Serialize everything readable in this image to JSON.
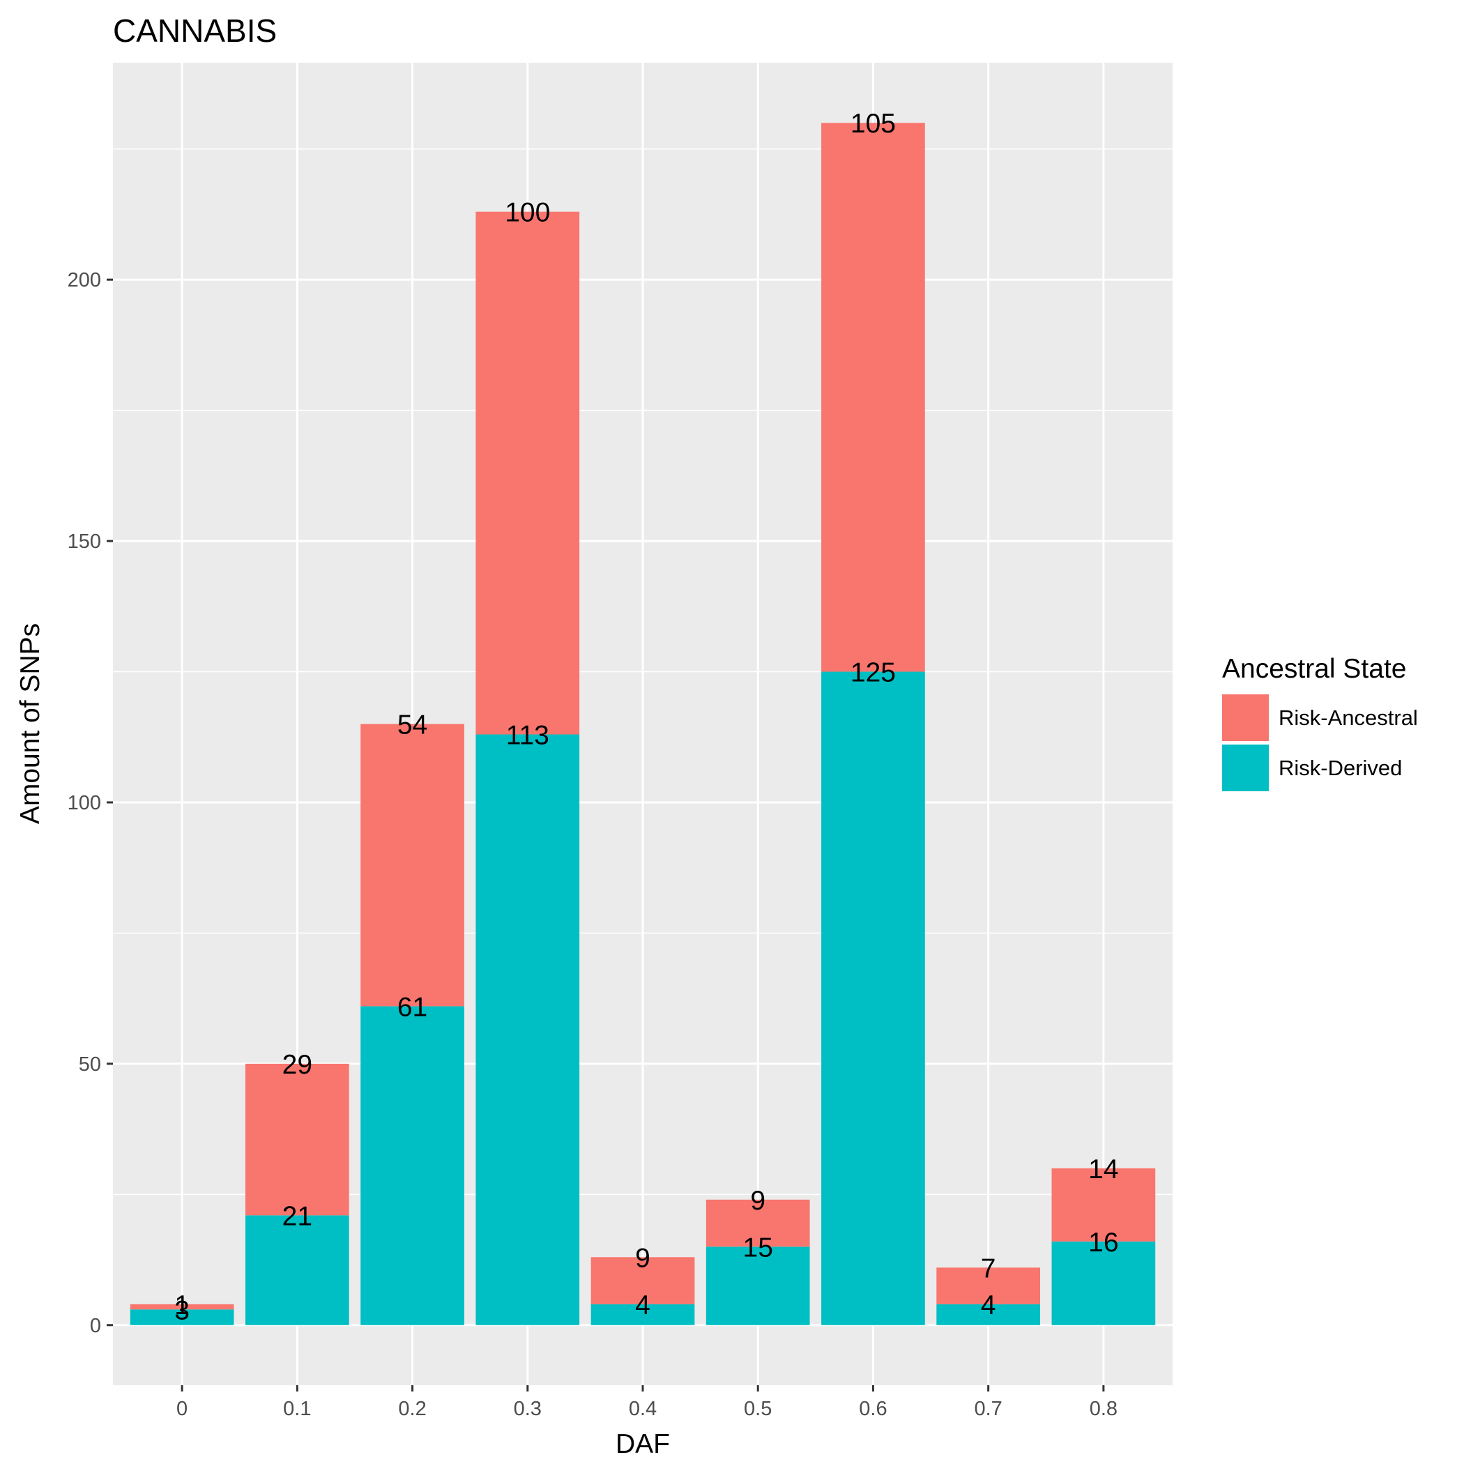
{
  "chart_data": {
    "type": "bar",
    "stacked": true,
    "title": "CANNABIS",
    "xlabel": "DAF",
    "ylabel": "Amount of SNPs",
    "categories": [
      "0",
      "0.1",
      "0.2",
      "0.3",
      "0.4",
      "0.5",
      "0.6",
      "0.7",
      "0.8"
    ],
    "yticks": [
      0,
      50,
      100,
      150,
      200
    ],
    "ytick_labels": [
      "0",
      "50",
      "100",
      "150",
      "200"
    ],
    "ylim": [
      -11.5,
      241.5
    ],
    "grid": true,
    "series": [
      {
        "name": "Risk-Derived",
        "color": "#00BFC4",
        "values": [
          3,
          21,
          61,
          113,
          4,
          15,
          125,
          4,
          16
        ]
      },
      {
        "name": "Risk-Ancestral",
        "color": "#F8766D",
        "values": [
          1,
          29,
          54,
          100,
          9,
          9,
          105,
          7,
          14
        ]
      }
    ],
    "legend": {
      "title": "Ancestral State",
      "placement": "right",
      "order": [
        "Risk-Ancestral",
        "Risk-Derived"
      ]
    },
    "panel_background": "#EBEBEB",
    "grid_color": "#FFFFFF"
  }
}
